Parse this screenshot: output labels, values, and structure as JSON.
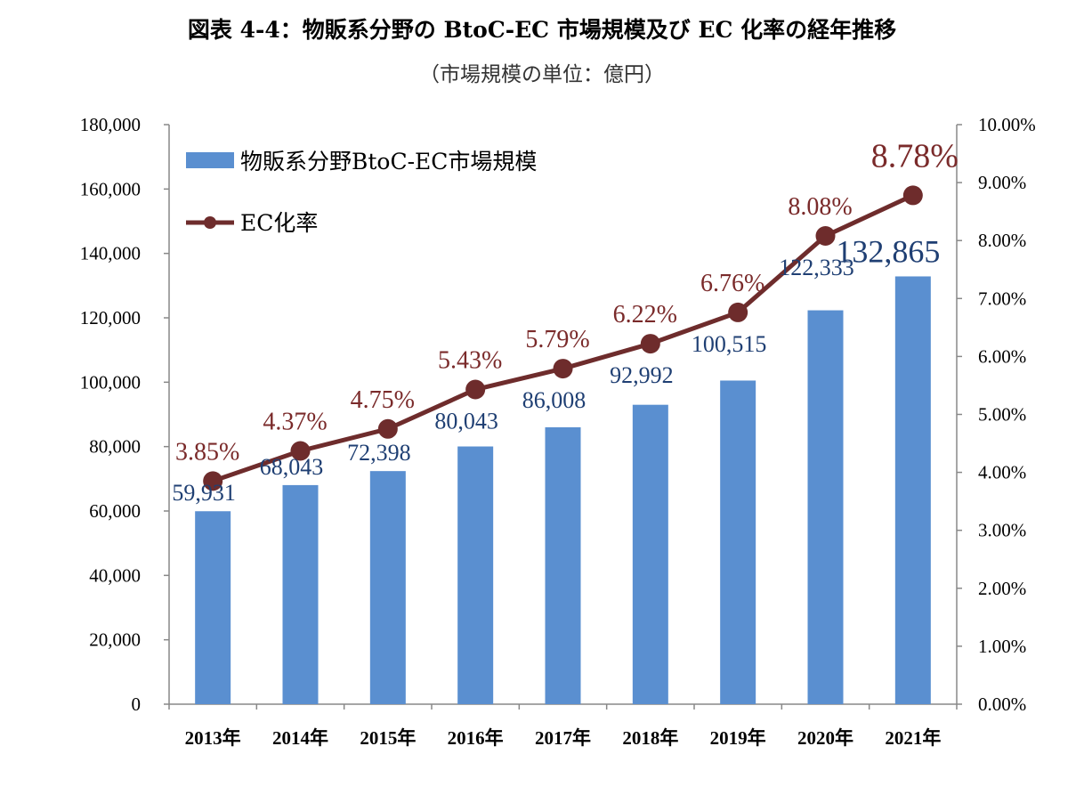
{
  "title": "図表 4-4：物販系分野の BtoC-EC 市場規模及び EC 化率の経年推移",
  "subtitle": "（市場規模の単位：億円）",
  "colors": {
    "bar": "#5a8fd0",
    "line": "#6e2c2c",
    "bar_label": "#1f3f73",
    "line_label": "#7a2a2a",
    "axis": "#888888"
  },
  "chart_data": {
    "type": "bar",
    "categories": [
      "2013年",
      "2014年",
      "2015年",
      "2016年",
      "2017年",
      "2018年",
      "2019年",
      "2020年",
      "2021年"
    ],
    "series": [
      {
        "name": "物販系分野BtoC-EC市場規模",
        "type": "bar",
        "axis": "left",
        "values": [
          59931,
          68043,
          72398,
          80043,
          86008,
          92992,
          100515,
          122333,
          132865
        ],
        "labels": [
          "59,931",
          "68,043",
          "72,398",
          "80,043",
          "86,008",
          "92,992",
          "100,515",
          "122,333",
          "132,865"
        ]
      },
      {
        "name": "EC化率",
        "type": "line",
        "axis": "right",
        "values": [
          3.85,
          4.37,
          4.75,
          5.43,
          5.79,
          6.22,
          6.76,
          8.08,
          8.78
        ],
        "labels": [
          "3.85%",
          "4.37%",
          "4.75%",
          "5.43%",
          "5.79%",
          "6.22%",
          "6.76%",
          "8.08%",
          "8.78%"
        ]
      }
    ],
    "y_left": {
      "lim": [
        0,
        180000
      ],
      "ticks": [
        0,
        20000,
        40000,
        60000,
        80000,
        100000,
        120000,
        140000,
        160000,
        180000
      ],
      "tick_labels": [
        "0",
        "20,000",
        "40,000",
        "60,000",
        "80,000",
        "100,000",
        "120,000",
        "140,000",
        "160,000",
        "180,000"
      ]
    },
    "y_right": {
      "lim": [
        0,
        10
      ],
      "ticks": [
        0,
        1,
        2,
        3,
        4,
        5,
        6,
        7,
        8,
        9,
        10
      ],
      "tick_labels": [
        "0.00%",
        "1.00%",
        "2.00%",
        "3.00%",
        "4.00%",
        "5.00%",
        "6.00%",
        "7.00%",
        "8.00%",
        "9.00%",
        "10.00%"
      ]
    },
    "legend_position": "top-left",
    "grid": false
  }
}
